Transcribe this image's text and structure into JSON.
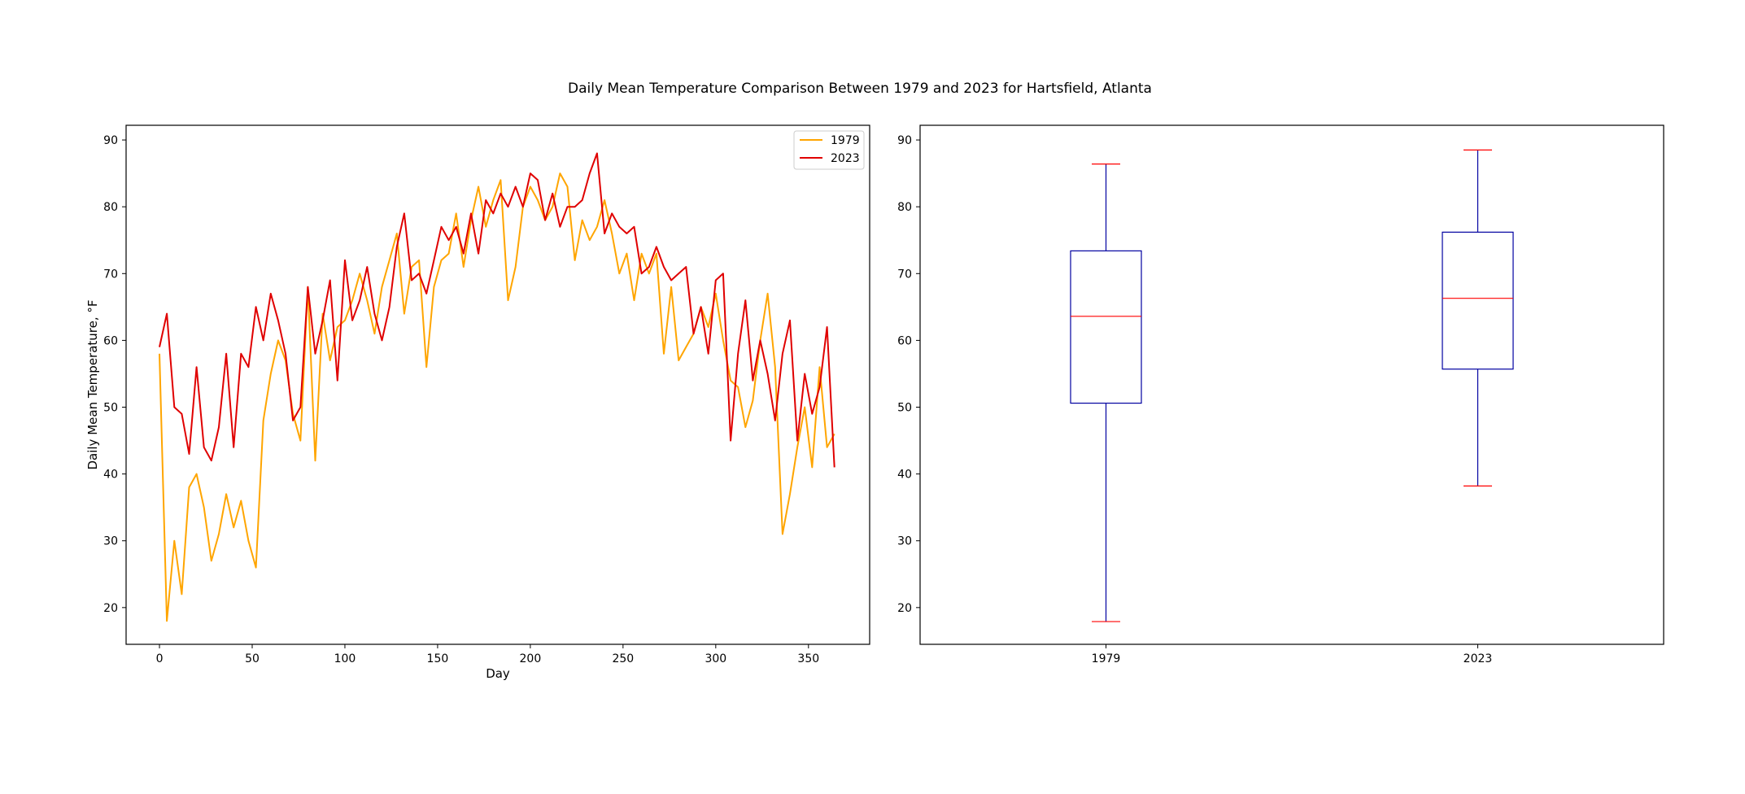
{
  "title": "Daily Mean Temperature Comparison Between 1979 and 2023 for Hartsfield, Atlanta",
  "colors": {
    "y1979": "#FFA500",
    "y2023": "#E00000",
    "box": "#0000A0",
    "median": "#FF0000",
    "whisker_cap": "#FF0000"
  },
  "chart_data": [
    {
      "type": "line",
      "xlabel": "Day",
      "ylabel": "Daily Mean Temperature, °F",
      "xlim": [
        -18,
        383
      ],
      "ylim": [
        14.5,
        92.2
      ],
      "xticks": [
        0,
        50,
        100,
        150,
        200,
        250,
        300,
        350
      ],
      "yticks": [
        20,
        30,
        40,
        50,
        60,
        70,
        80,
        90
      ],
      "legend_position": "upper right",
      "series_style": "daily values sampled every 4 days (days 0 to 364)",
      "series": [
        {
          "name": "1979",
          "color": "#FFA500",
          "x": [
            0,
            4,
            8,
            12,
            16,
            20,
            24,
            28,
            32,
            36,
            40,
            44,
            48,
            52,
            56,
            60,
            64,
            68,
            72,
            76,
            80,
            84,
            88,
            92,
            96,
            100,
            104,
            108,
            112,
            116,
            120,
            124,
            128,
            132,
            136,
            140,
            144,
            148,
            152,
            156,
            160,
            164,
            168,
            172,
            176,
            180,
            184,
            188,
            192,
            196,
            200,
            204,
            208,
            212,
            216,
            220,
            224,
            228,
            232,
            236,
            240,
            244,
            248,
            252,
            256,
            260,
            264,
            268,
            272,
            276,
            280,
            284,
            288,
            292,
            296,
            300,
            304,
            308,
            312,
            316,
            320,
            324,
            328,
            332,
            336,
            340,
            344,
            348,
            352,
            356,
            360,
            364
          ],
          "y": [
            58,
            18,
            30,
            22,
            38,
            40,
            35,
            27,
            31,
            37,
            32,
            36,
            30,
            26,
            48,
            55,
            60,
            57,
            49,
            45,
            68,
            42,
            64,
            57,
            62,
            63,
            66,
            70,
            66,
            61,
            68,
            72,
            76,
            64,
            71,
            72,
            56,
            68,
            72,
            73,
            79,
            71,
            78,
            83,
            77,
            81,
            84,
            66,
            71,
            80,
            83,
            81,
            78,
            80,
            85,
            83,
            72,
            78,
            75,
            77,
            81,
            76,
            70,
            73,
            66,
            73,
            70,
            73,
            58,
            68,
            57,
            59,
            61,
            65,
            62,
            67,
            60,
            54,
            53,
            47,
            51,
            60,
            67,
            56,
            31,
            37,
            44,
            50,
            41,
            56,
            44,
            46
          ]
        },
        {
          "name": "2023",
          "color": "#E00000",
          "x": [
            0,
            4,
            8,
            12,
            16,
            20,
            24,
            28,
            32,
            36,
            40,
            44,
            48,
            52,
            56,
            60,
            64,
            68,
            72,
            76,
            80,
            84,
            88,
            92,
            96,
            100,
            104,
            108,
            112,
            116,
            120,
            124,
            128,
            132,
            136,
            140,
            144,
            148,
            152,
            156,
            160,
            164,
            168,
            172,
            176,
            180,
            184,
            188,
            192,
            196,
            200,
            204,
            208,
            212,
            216,
            220,
            224,
            228,
            232,
            236,
            240,
            244,
            248,
            252,
            256,
            260,
            264,
            268,
            272,
            276,
            280,
            284,
            288,
            292,
            296,
            300,
            304,
            308,
            312,
            316,
            320,
            324,
            328,
            332,
            336,
            340,
            344,
            348,
            352,
            356,
            360,
            364
          ],
          "y": [
            59,
            64,
            50,
            49,
            43,
            56,
            44,
            42,
            47,
            58,
            44,
            58,
            56,
            65,
            60,
            67,
            63,
            58,
            48,
            50,
            68,
            58,
            63,
            69,
            54,
            72,
            63,
            66,
            71,
            64,
            60,
            65,
            74,
            79,
            69,
            70,
            67,
            72,
            77,
            75,
            77,
            73,
            79,
            73,
            81,
            79,
            82,
            80,
            83,
            80,
            85,
            84,
            78,
            82,
            77,
            80,
            80,
            81,
            85,
            88,
            76,
            79,
            77,
            76,
            77,
            70,
            71,
            74,
            71,
            69,
            70,
            71,
            61,
            65,
            58,
            69,
            70,
            45,
            58,
            66,
            54,
            60,
            55,
            48,
            58,
            63,
            45,
            55,
            49,
            53,
            62,
            41
          ]
        }
      ]
    },
    {
      "type": "box",
      "categories": [
        "1979",
        "2023"
      ],
      "ylim": [
        14.5,
        92.2
      ],
      "yticks": [
        20,
        30,
        40,
        50,
        60,
        70,
        80,
        90
      ],
      "boxes": [
        {
          "name": "1979",
          "min": 17.9,
          "q1": 50.6,
          "median": 63.6,
          "q3": 73.4,
          "max": 86.4
        },
        {
          "name": "2023",
          "min": 38.2,
          "q1": 55.7,
          "median": 66.3,
          "q3": 76.2,
          "max": 88.5
        }
      ]
    }
  ]
}
